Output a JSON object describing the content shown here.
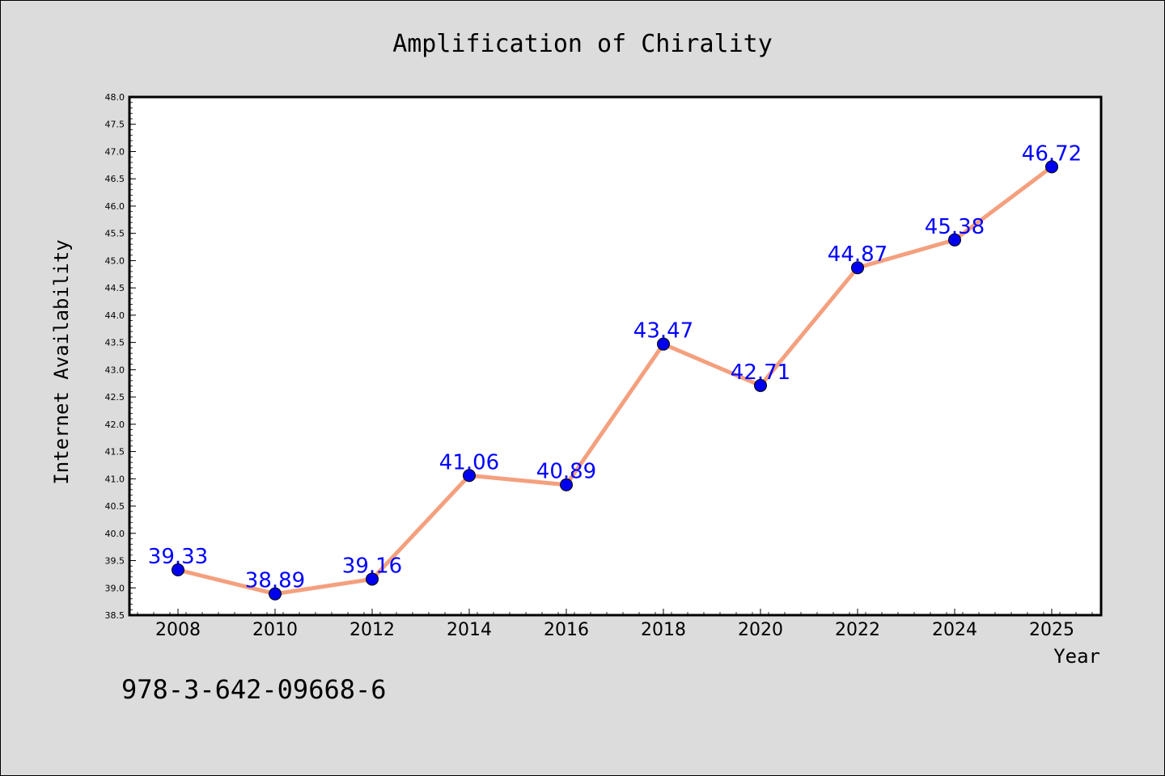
{
  "chart_data": {
    "type": "line",
    "title": "Amplification of Chirality",
    "xlabel": "Year",
    "ylabel": "Internet Availability",
    "x": [
      "2008",
      "2010",
      "2012",
      "2014",
      "2016",
      "2018",
      "2020",
      "2022",
      "2024",
      "2025"
    ],
    "series": [
      {
        "values": [
          39.33,
          38.89,
          39.16,
          41.06,
          40.89,
          43.47,
          42.71,
          44.87,
          45.38,
          46.72
        ]
      }
    ],
    "data_labels": [
      "39.33",
      "38.89",
      "39.16",
      "41.06",
      "40.89",
      "43.47",
      "42.71",
      "44.87",
      "45.38",
      "46.72"
    ],
    "ylim": [
      38.5,
      48.0
    ],
    "y_ticks": [
      "38.5",
      "39.0",
      "39.5",
      "40.0",
      "40.5",
      "41.0",
      "41.5",
      "42.0",
      "42.5",
      "43.0",
      "43.5",
      "44.0",
      "44.5",
      "45.0",
      "45.5",
      "46.0",
      "46.5",
      "47.0",
      "47.5",
      "48.0"
    ],
    "grid": false,
    "legend": "none",
    "colors": {
      "line": "#f4a07e",
      "marker": "#0000ee",
      "label": "#0000ff",
      "background": "#dcdcdc",
      "plot_area": "#ffffff"
    }
  },
  "annotation": {
    "isbn": "978-3-642-09668-6"
  }
}
